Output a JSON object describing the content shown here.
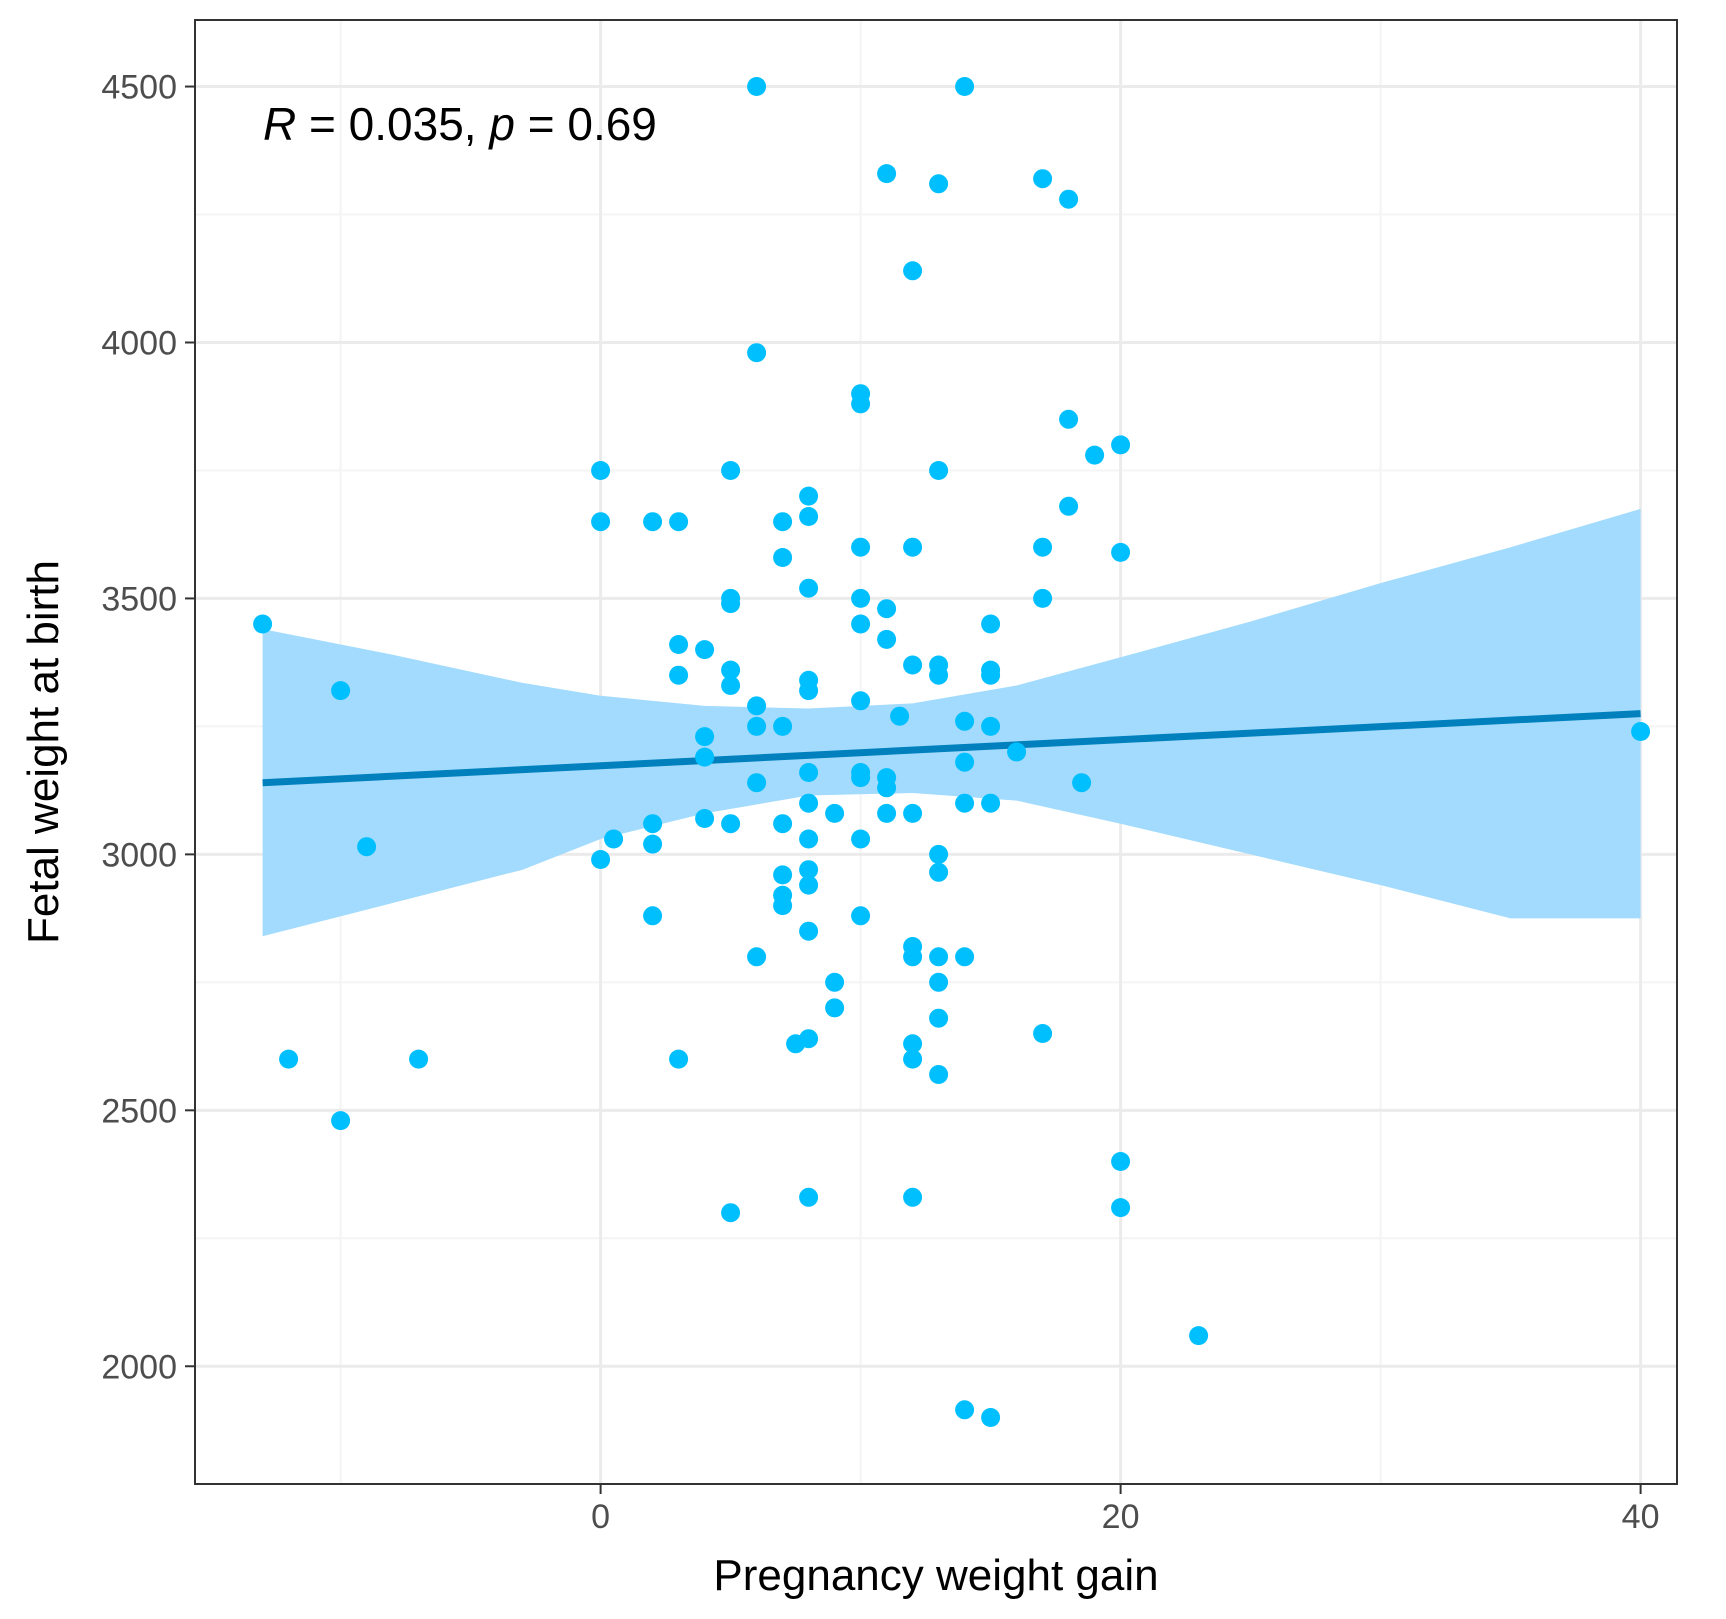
{
  "chart_data": {
    "type": "scatter",
    "title": "",
    "xlabel": "Pregnancy weight gain",
    "ylabel": "Fetal weight at birth",
    "xlim": [
      -15.6,
      41.4
    ],
    "ylim": [
      1770,
      4630
    ],
    "x_ticks": [
      0,
      20,
      40
    ],
    "x_tick_labels": [
      "0",
      "20",
      "40"
    ],
    "x_minor_gridlines": [
      -10,
      10,
      30
    ],
    "y_ticks": [
      2000,
      2500,
      3000,
      3500,
      4000,
      4500
    ],
    "y_tick_labels": [
      "2000",
      "2500",
      "3000",
      "3500",
      "4000",
      "4500"
    ],
    "y_minor_gridlines": [
      2250,
      2750,
      3250,
      3750,
      4250
    ],
    "grid": true,
    "annotation": {
      "r_symbol": "R",
      "r_text": " = 0.035, ",
      "p_symbol": "p",
      "p_text": " = 0.69"
    },
    "regression": {
      "type": "linear",
      "x_range": [
        -13,
        40
      ],
      "line": [
        [
          -13,
          3140
        ],
        [
          40,
          3275
        ]
      ],
      "ci_upper": [
        [
          -13,
          3440
        ],
        [
          -8,
          3390
        ],
        [
          -3,
          3335
        ],
        [
          0,
          3310
        ],
        [
          4,
          3290
        ],
        [
          8,
          3285
        ],
        [
          12,
          3295
        ],
        [
          16,
          3330
        ],
        [
          20,
          3385
        ],
        [
          25,
          3455
        ],
        [
          30,
          3530
        ],
        [
          35,
          3600
        ],
        [
          40,
          3675
        ]
      ],
      "ci_lower": [
        [
          -13,
          2840
        ],
        [
          -8,
          2905
        ],
        [
          -3,
          2970
        ],
        [
          0,
          3030
        ],
        [
          4,
          3080
        ],
        [
          8,
          3115
        ],
        [
          12,
          3120
        ],
        [
          16,
          3105
        ],
        [
          20,
          3060
        ],
        [
          25,
          3000
        ],
        [
          30,
          2940
        ],
        [
          35,
          2875
        ],
        [
          40,
          2875
        ]
      ]
    },
    "points": [
      [
        -13,
        3450
      ],
      [
        -12,
        2600
      ],
      [
        -10,
        3320
      ],
      [
        -10,
        2480
      ],
      [
        -9,
        3015
      ],
      [
        -7,
        2600
      ],
      [
        0,
        3750
      ],
      [
        0,
        3650
      ],
      [
        0,
        2990
      ],
      [
        0.5,
        3030
      ],
      [
        2,
        3650
      ],
      [
        2,
        3060
      ],
      [
        2,
        3020
      ],
      [
        2,
        2880
      ],
      [
        3,
        3650
      ],
      [
        3,
        3410
      ],
      [
        3,
        3350
      ],
      [
        3,
        2600
      ],
      [
        4,
        3400
      ],
      [
        4,
        3230
      ],
      [
        4,
        3190
      ],
      [
        4,
        3070
      ],
      [
        5,
        3750
      ],
      [
        5,
        3500
      ],
      [
        5,
        3490
      ],
      [
        5,
        3360
      ],
      [
        5,
        3330
      ],
      [
        5,
        3060
      ],
      [
        5,
        2300
      ],
      [
        6,
        4500
      ],
      [
        6,
        3980
      ],
      [
        6,
        3290
      ],
      [
        6,
        3250
      ],
      [
        6,
        3140
      ],
      [
        6,
        2800
      ],
      [
        7,
        3650
      ],
      [
        7,
        3580
      ],
      [
        7,
        3250
      ],
      [
        7,
        3060
      ],
      [
        7,
        2960
      ],
      [
        7,
        2920
      ],
      [
        7,
        2900
      ],
      [
        7.5,
        2630
      ],
      [
        8,
        3700
      ],
      [
        8,
        3660
      ],
      [
        8,
        3520
      ],
      [
        8,
        3340
      ],
      [
        8,
        3320
      ],
      [
        8,
        3160
      ],
      [
        8,
        3100
      ],
      [
        8,
        3030
      ],
      [
        8,
        2970
      ],
      [
        8,
        2940
      ],
      [
        8,
        2850
      ],
      [
        8,
        2640
      ],
      [
        8,
        2330
      ],
      [
        9,
        3080
      ],
      [
        9,
        2750
      ],
      [
        9,
        2700
      ],
      [
        10,
        3900
      ],
      [
        10,
        3880
      ],
      [
        10,
        3600
      ],
      [
        10,
        3500
      ],
      [
        10,
        3450
      ],
      [
        10,
        3300
      ],
      [
        10,
        3160
      ],
      [
        10,
        3150
      ],
      [
        10,
        3030
      ],
      [
        10,
        2880
      ],
      [
        11,
        4330
      ],
      [
        11,
        3480
      ],
      [
        11,
        3420
      ],
      [
        11,
        3150
      ],
      [
        11,
        3130
      ],
      [
        11,
        3080
      ],
      [
        11.5,
        3270
      ],
      [
        12,
        4140
      ],
      [
        12,
        3600
      ],
      [
        12,
        3370
      ],
      [
        12,
        3080
      ],
      [
        12,
        2820
      ],
      [
        12,
        2800
      ],
      [
        12,
        2630
      ],
      [
        12,
        2600
      ],
      [
        12,
        2330
      ],
      [
        13,
        4310
      ],
      [
        13,
        3750
      ],
      [
        13,
        3370
      ],
      [
        13,
        3350
      ],
      [
        13,
        3000
      ],
      [
        13,
        2965
      ],
      [
        13,
        2800
      ],
      [
        13,
        2750
      ],
      [
        13,
        2680
      ],
      [
        13,
        2570
      ],
      [
        14,
        4500
      ],
      [
        14,
        3260
      ],
      [
        14,
        3180
      ],
      [
        14,
        3100
      ],
      [
        14,
        2800
      ],
      [
        14,
        1915
      ],
      [
        15,
        3450
      ],
      [
        15,
        3360
      ],
      [
        15,
        3350
      ],
      [
        15,
        3250
      ],
      [
        15,
        3100
      ],
      [
        15,
        1900
      ],
      [
        16,
        3200
      ],
      [
        17,
        4320
      ],
      [
        17,
        3600
      ],
      [
        17,
        3500
      ],
      [
        17,
        2650
      ],
      [
        18,
        4280
      ],
      [
        18,
        3850
      ],
      [
        18,
        3680
      ],
      [
        18.5,
        3140
      ],
      [
        19,
        3780
      ],
      [
        20,
        3800
      ],
      [
        20,
        3590
      ],
      [
        20,
        2400
      ],
      [
        20,
        2310
      ],
      [
        23,
        2060
      ],
      [
        40,
        3240
      ]
    ],
    "colors": {
      "points": "#00bfff",
      "line": "#0080bd",
      "ribbon": "#a2dbfd",
      "grid_major": "#ebebeb",
      "grid_minor": "#f4f4f4",
      "panel_border": "#333333",
      "tick_label": "#4d4d4d"
    }
  }
}
